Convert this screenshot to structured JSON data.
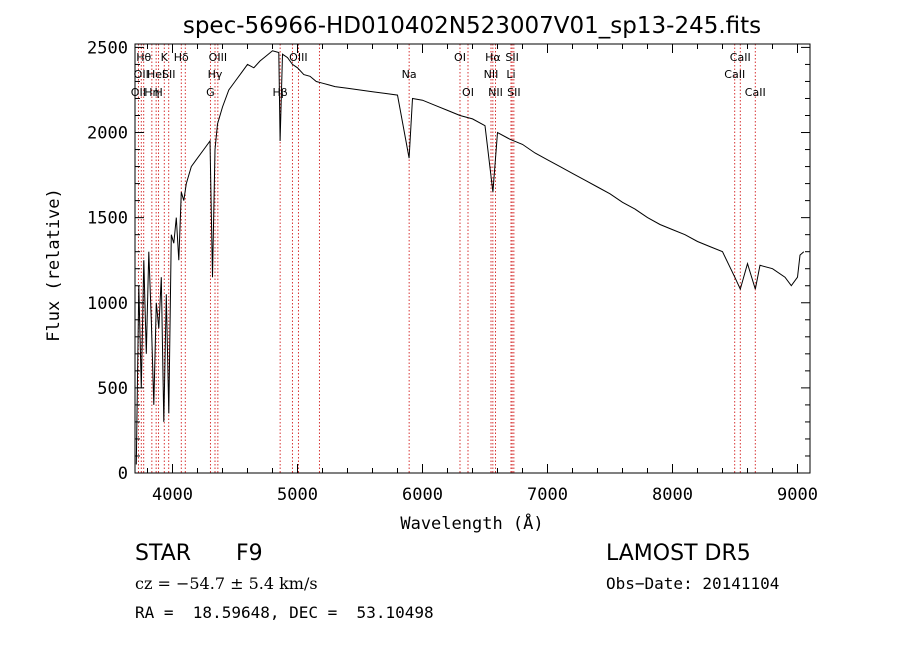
{
  "chart_data": {
    "type": "line",
    "title": "spec-56966-HD010402N523007V01_sp13-245.fits",
    "xlabel": "Wavelength (Å)",
    "ylabel": "Flux (relative)",
    "xlim": [
      3700,
      9100
    ],
    "ylim": [
      0,
      2520
    ],
    "xticks": [
      4000,
      5000,
      6000,
      7000,
      8000,
      9000
    ],
    "yticks": [
      0,
      500,
      1000,
      1500,
      2000,
      2500
    ],
    "grid": false,
    "line_color": "#000000",
    "marker_color": "#cc0000",
    "series": [
      {
        "x": [
          3710,
          3730,
          3750,
          3770,
          3790,
          3810,
          3830,
          3850,
          3870,
          3890,
          3910,
          3930,
          3950,
          3970,
          3990,
          4010,
          4030,
          4050,
          4070,
          4090,
          4110,
          4150,
          4200,
          4250,
          4300,
          4320,
          4340,
          4360,
          4400,
          4450,
          4500,
          4550,
          4600,
          4650,
          4700,
          4750,
          4800,
          4850,
          4861,
          4880,
          4920,
          4960,
          5000,
          5050,
          5100,
          5150,
          5200,
          5250,
          5300,
          5400,
          5500,
          5600,
          5700,
          5800,
          5893,
          5920,
          6000,
          6100,
          6200,
          6300,
          6400,
          6500,
          6563,
          6600,
          6700,
          6800,
          6900,
          7000,
          7100,
          7200,
          7300,
          7400,
          7500,
          7600,
          7700,
          7800,
          7900,
          8000,
          8100,
          8200,
          8300,
          8400,
          8498,
          8542,
          8600,
          8662,
          8700,
          8800,
          8900,
          8950,
          9000,
          9020,
          9050
        ],
        "values": [
          50,
          1100,
          500,
          1250,
          700,
          1300,
          900,
          400,
          1000,
          850,
          1150,
          300,
          1050,
          350,
          1400,
          1350,
          1500,
          1250,
          1650,
          1600,
          1700,
          1800,
          1850,
          1900,
          1950,
          1150,
          1900,
          2050,
          2150,
          2250,
          2300,
          2350,
          2400,
          2380,
          2420,
          2450,
          2480,
          2470,
          1950,
          2460,
          2440,
          2400,
          2380,
          2340,
          2330,
          2300,
          2290,
          2280,
          2270,
          2260,
          2250,
          2240,
          2230,
          2220,
          1850,
          2200,
          2190,
          2160,
          2130,
          2100,
          2080,
          2040,
          1650,
          2000,
          1960,
          1930,
          1880,
          1840,
          1800,
          1760,
          1720,
          1680,
          1640,
          1590,
          1550,
          1500,
          1460,
          1430,
          1400,
          1360,
          1330,
          1300,
          1150,
          1080,
          1230,
          1080,
          1220,
          1200,
          1150,
          1100,
          1150,
          1280,
          1300
        ]
      }
    ],
    "line_markers": [
      {
        "wavelength": 3727,
        "label": "OII",
        "row": 2
      },
      {
        "wavelength": 3750,
        "label": "OII",
        "row": 1
      },
      {
        "wavelength": 3770,
        "label": "Hθ",
        "row": 0
      },
      {
        "wavelength": 3835,
        "label": "Hη",
        "row": 2
      },
      {
        "wavelength": 3869,
        "label": "HeI",
        "row": 1
      },
      {
        "wavelength": 3889,
        "label": "H",
        "row": 2
      },
      {
        "wavelength": 3934,
        "label": "K",
        "row": 0
      },
      {
        "wavelength": 3970,
        "label": "SII",
        "row": 1
      },
      {
        "wavelength": 4070,
        "label": "Hδ",
        "row": 0
      },
      {
        "wavelength": 4102,
        "label": "",
        "row": 0
      },
      {
        "wavelength": 4303,
        "label": "G",
        "row": 2
      },
      {
        "wavelength": 4340,
        "label": "Hγ",
        "row": 1
      },
      {
        "wavelength": 4363,
        "label": "OIII",
        "row": 0
      },
      {
        "wavelength": 4861,
        "label": "Hβ",
        "row": 2
      },
      {
        "wavelength": 4959,
        "label": "",
        "row": 0
      },
      {
        "wavelength": 5007,
        "label": "OIII",
        "row": 0
      },
      {
        "wavelength": 5175,
        "label": "",
        "row": 0
      },
      {
        "wavelength": 5893,
        "label": "Na",
        "row": 1
      },
      {
        "wavelength": 6300,
        "label": "OI",
        "row": 0
      },
      {
        "wavelength": 6364,
        "label": "OI",
        "row": 2
      },
      {
        "wavelength": 6548,
        "label": "NII",
        "row": 1
      },
      {
        "wavelength": 6563,
        "label": "Hα",
        "row": 0
      },
      {
        "wavelength": 6584,
        "label": "NII",
        "row": 2
      },
      {
        "wavelength": 6708,
        "label": "Li",
        "row": 1
      },
      {
        "wavelength": 6717,
        "label": "SII",
        "row": 0
      },
      {
        "wavelength": 6731,
        "label": "SII",
        "row": 2
      },
      {
        "wavelength": 8498,
        "label": "CaII",
        "row": 1
      },
      {
        "wavelength": 8542,
        "label": "CaII",
        "row": 0
      },
      {
        "wavelength": 8662,
        "label": "CaII",
        "row": 2
      }
    ]
  },
  "info": {
    "object_class": "STAR",
    "subclass": "F9",
    "survey": "LAMOST DR5",
    "redshift": "cz = −54.7 ± 5.4 km/s",
    "obs_date": "Obs−Date: 20141104",
    "coords": "RA =  18.59648, DEC =  53.10498"
  }
}
